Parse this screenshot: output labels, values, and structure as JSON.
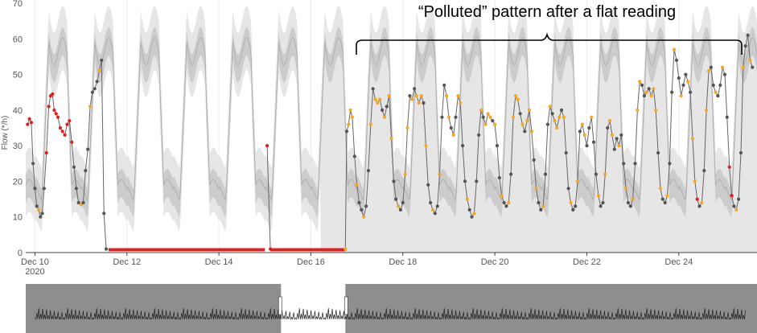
{
  "annotation": "“Polluted” pattern after a flat reading",
  "chart_data": {
    "type": "line",
    "title": "",
    "xlabel": "",
    "ylabel": "Flow (*/h)",
    "ylim": [
      0,
      70
    ],
    "yticks": [
      0,
      10,
      20,
      30,
      40,
      50,
      60,
      70
    ],
    "xlim": [
      9.8,
      25.7
    ],
    "x_unit": "day of December 2020",
    "xticks": [
      {
        "day": 10,
        "label": "Dec 10",
        "sublabel": "2020"
      },
      {
        "day": 12,
        "label": "Dec 12"
      },
      {
        "day": 14,
        "label": "Dec 14"
      },
      {
        "day": 16,
        "label": "Dec 16"
      },
      {
        "day": 18,
        "label": "Dec 18"
      },
      {
        "day": 20,
        "label": "Dec 20"
      },
      {
        "day": 22,
        "label": "Dec 22"
      },
      {
        "day": 24,
        "label": "Dec 24"
      }
    ],
    "grid": "vertical",
    "band_colors": {
      "outer": "#e6e6e6",
      "inner": "#cccccc",
      "median": "#aaaaaa"
    },
    "point_colors": {
      "normal": "#555555",
      "warning": "#f5a623",
      "error": "#e02020"
    },
    "flat_reading": {
      "start": 11.6,
      "end": 16.75,
      "value": 0.8,
      "gap_start": 15.0,
      "gap_end": 15.05
    },
    "series": [
      {
        "values": [
          [
            9.84,
            36
          ],
          [
            9.88,
            37.5
          ],
          [
            9.92,
            36.5
          ],
          [
            9.96,
            25
          ],
          [
            10.0,
            18
          ],
          [
            10.04,
            13
          ],
          [
            10.08,
            12
          ],
          [
            10.12,
            10
          ],
          [
            10.16,
            11
          ],
          [
            10.2,
            18
          ],
          [
            10.25,
            28
          ],
          [
            10.3,
            41
          ],
          [
            10.34,
            44
          ],
          [
            10.38,
            44.5
          ],
          [
            10.42,
            40
          ],
          [
            10.46,
            39
          ],
          [
            10.5,
            38
          ],
          [
            10.55,
            35
          ],
          [
            10.6,
            34
          ],
          [
            10.65,
            33
          ],
          [
            10.7,
            36
          ],
          [
            10.75,
            37
          ],
          [
            10.8,
            31
          ],
          [
            10.85,
            24
          ],
          [
            10.9,
            18
          ],
          [
            10.95,
            14
          ],
          [
            11.0,
            13.5
          ],
          [
            11.05,
            14
          ],
          [
            11.1,
            23
          ],
          [
            11.15,
            29
          ],
          [
            11.2,
            41
          ],
          [
            11.25,
            45
          ],
          [
            11.3,
            46
          ],
          [
            11.35,
            48
          ],
          [
            11.4,
            51
          ],
          [
            11.45,
            54
          ],
          [
            11.5,
            11
          ],
          [
            11.55,
            1
          ]
        ]
      },
      {
        "values": [
          [
            15.05,
            30
          ],
          [
            15.12,
            1
          ]
        ]
      },
      {
        "values": [
          [
            16.75,
            1
          ],
          [
            16.78,
            34
          ],
          [
            16.82,
            36
          ],
          [
            16.86,
            40
          ],
          [
            16.9,
            38
          ],
          [
            16.95,
            27
          ],
          [
            17.0,
            19
          ],
          [
            17.05,
            14
          ],
          [
            17.1,
            12
          ],
          [
            17.15,
            10
          ],
          [
            17.2,
            13
          ],
          [
            17.25,
            23
          ],
          [
            17.3,
            36
          ],
          [
            17.35,
            46
          ],
          [
            17.4,
            43
          ],
          [
            17.45,
            42
          ],
          [
            17.5,
            43
          ],
          [
            17.55,
            40
          ],
          [
            17.6,
            38
          ],
          [
            17.65,
            41
          ],
          [
            17.7,
            44
          ],
          [
            17.75,
            32
          ],
          [
            17.8,
            20
          ],
          [
            17.85,
            15
          ],
          [
            17.9,
            13
          ],
          [
            17.95,
            12
          ],
          [
            18.0,
            14
          ],
          [
            18.05,
            22
          ],
          [
            18.1,
            35
          ],
          [
            18.15,
            44
          ],
          [
            18.2,
            43
          ],
          [
            18.25,
            46
          ],
          [
            18.3,
            44
          ],
          [
            18.35,
            42
          ],
          [
            18.4,
            44
          ],
          [
            18.45,
            42
          ],
          [
            18.5,
            30
          ],
          [
            18.55,
            19
          ],
          [
            18.6,
            14
          ],
          [
            18.65,
            12
          ],
          [
            18.7,
            11
          ],
          [
            18.75,
            13
          ],
          [
            18.8,
            22
          ],
          [
            18.85,
            38
          ],
          [
            18.9,
            47
          ],
          [
            18.95,
            44
          ],
          [
            19.0,
            38
          ],
          [
            19.05,
            35
          ],
          [
            19.1,
            33
          ],
          [
            19.15,
            38
          ],
          [
            19.2,
            44
          ],
          [
            19.25,
            42
          ],
          [
            19.3,
            30
          ],
          [
            19.35,
            20
          ],
          [
            19.4,
            15
          ],
          [
            19.45,
            12
          ],
          [
            19.5,
            10
          ],
          [
            19.55,
            11
          ],
          [
            19.6,
            20
          ],
          [
            19.65,
            33
          ],
          [
            19.7,
            40
          ],
          [
            19.75,
            38
          ],
          [
            19.8,
            36
          ],
          [
            19.85,
            39
          ],
          [
            19.9,
            38
          ],
          [
            19.95,
            37
          ],
          [
            20.0,
            36
          ],
          [
            20.05,
            30
          ],
          [
            20.1,
            21
          ],
          [
            20.15,
            16
          ],
          [
            20.2,
            14
          ],
          [
            20.25,
            13
          ],
          [
            20.3,
            14
          ],
          [
            20.35,
            22
          ],
          [
            20.4,
            38
          ],
          [
            20.45,
            44
          ],
          [
            20.5,
            43
          ],
          [
            20.55,
            39
          ],
          [
            20.6,
            36
          ],
          [
            20.65,
            34
          ],
          [
            20.7,
            37
          ],
          [
            20.75,
            40
          ],
          [
            20.8,
            34
          ],
          [
            20.85,
            26
          ],
          [
            20.9,
            18
          ],
          [
            20.95,
            14
          ],
          [
            21.0,
            12
          ],
          [
            21.05,
            13
          ],
          [
            21.1,
            22
          ],
          [
            21.15,
            36
          ],
          [
            21.2,
            41
          ],
          [
            21.25,
            39
          ],
          [
            21.3,
            37
          ],
          [
            21.35,
            35
          ],
          [
            21.4,
            38
          ],
          [
            21.45,
            40
          ],
          [
            21.5,
            38
          ],
          [
            21.55,
            28
          ],
          [
            21.6,
            18
          ],
          [
            21.65,
            14
          ],
          [
            21.7,
            12
          ],
          [
            21.75,
            13
          ],
          [
            21.8,
            20
          ],
          [
            21.85,
            34
          ],
          [
            21.9,
            36
          ],
          [
            21.95,
            33
          ],
          [
            22.0,
            30
          ],
          [
            22.05,
            35
          ],
          [
            22.1,
            38
          ],
          [
            22.15,
            31
          ],
          [
            22.2,
            22
          ],
          [
            22.25,
            16
          ],
          [
            22.3,
            13
          ],
          [
            22.35,
            14
          ],
          [
            22.4,
            22
          ],
          [
            22.45,
            35
          ],
          [
            22.5,
            37
          ],
          [
            22.55,
            33
          ],
          [
            22.6,
            29
          ],
          [
            22.65,
            32
          ],
          [
            22.7,
            30
          ],
          [
            22.75,
            33
          ],
          [
            22.8,
            25
          ],
          [
            22.85,
            18
          ],
          [
            22.9,
            14
          ],
          [
            22.95,
            13
          ],
          [
            23.0,
            15
          ],
          [
            23.05,
            25
          ],
          [
            23.1,
            40
          ],
          [
            23.15,
            48
          ],
          [
            23.2,
            47
          ],
          [
            23.25,
            44
          ],
          [
            23.3,
            45
          ],
          [
            23.35,
            46
          ],
          [
            23.4,
            44
          ],
          [
            23.45,
            46
          ],
          [
            23.5,
            40
          ],
          [
            23.55,
            28
          ],
          [
            23.6,
            18
          ],
          [
            23.65,
            15
          ],
          [
            23.7,
            14
          ],
          [
            23.75,
            16
          ],
          [
            23.8,
            25
          ],
          [
            23.85,
            45
          ],
          [
            23.9,
            57
          ],
          [
            23.95,
            54
          ],
          [
            24.0,
            49
          ],
          [
            24.05,
            44
          ],
          [
            24.1,
            47
          ],
          [
            24.15,
            50
          ],
          [
            24.2,
            48
          ],
          [
            24.25,
            45
          ],
          [
            24.3,
            32
          ],
          [
            24.35,
            20
          ],
          [
            24.4,
            15
          ],
          [
            24.45,
            13
          ],
          [
            24.5,
            14
          ],
          [
            24.55,
            23
          ],
          [
            24.6,
            40
          ],
          [
            24.65,
            51
          ],
          [
            24.7,
            52
          ],
          [
            24.75,
            47
          ],
          [
            24.8,
            45
          ],
          [
            24.85,
            44
          ],
          [
            24.9,
            47
          ],
          [
            24.95,
            52
          ],
          [
            25.0,
            50
          ],
          [
            25.05,
            38
          ],
          [
            25.1,
            24
          ],
          [
            25.15,
            16
          ],
          [
            25.2,
            13
          ],
          [
            25.25,
            12
          ],
          [
            25.3,
            15
          ],
          [
            25.35,
            28
          ],
          [
            25.4,
            52
          ],
          [
            25.45,
            58
          ],
          [
            25.5,
            61
          ],
          [
            25.55,
            54
          ],
          [
            25.6,
            52
          ]
        ]
      }
    ]
  },
  "range_slider": {
    "selected_start": 15.35,
    "selected_end": 16.75
  }
}
